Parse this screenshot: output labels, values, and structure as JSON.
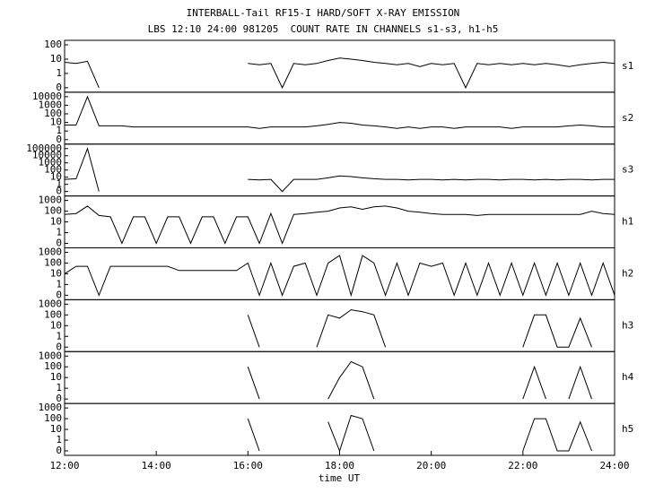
{
  "chart_data": {
    "type": "line",
    "title": "INTERBALL-Tail RF15-I HARD/SOFT X-RAY EMISSION",
    "subtitle": "LBS 12:10 24:00 981205  COUNT RATE IN CHANNELS s1-s3, h1-h5",
    "xlabel": "time UT",
    "yscale": "log",
    "xlim": [
      12,
      24
    ],
    "xticks": [
      {
        "value": 12,
        "label": "12:00"
      },
      {
        "value": 14,
        "label": "14:00"
      },
      {
        "value": 16,
        "label": "16:00"
      },
      {
        "value": 18,
        "label": "18:00"
      },
      {
        "value": 20,
        "label": "20:00"
      },
      {
        "value": 22,
        "label": "22:00"
      },
      {
        "value": 24,
        "label": "24:00"
      }
    ],
    "x": [
      12,
      12.25,
      12.5,
      12.75,
      13,
      13.25,
      13.5,
      13.75,
      14,
      14.25,
      14.5,
      14.75,
      15,
      15.25,
      15.5,
      15.75,
      16,
      16.25,
      16.5,
      16.75,
      17,
      17.25,
      17.5,
      17.75,
      18,
      18.25,
      18.5,
      18.75,
      19,
      19.25,
      19.5,
      19.75,
      20,
      20.25,
      20.5,
      20.75,
      21,
      21.25,
      21.5,
      21.75,
      22,
      22.25,
      22.5,
      22.75,
      23,
      23.25,
      23.5,
      23.75,
      24
    ],
    "color": "#000000",
    "panels": [
      {
        "name": "s1",
        "ylim": [
          0,
          100
        ],
        "yticks": [
          0,
          1,
          10,
          100
        ],
        "values": [
          6,
          5,
          7,
          0,
          null,
          null,
          null,
          null,
          null,
          null,
          null,
          null,
          null,
          null,
          null,
          null,
          5,
          4,
          5,
          0,
          5,
          4,
          5,
          8,
          12,
          10,
          8,
          6,
          5,
          4,
          5,
          3,
          5,
          4,
          5,
          0,
          5,
          4,
          5,
          4,
          5,
          4,
          5,
          4,
          3,
          4,
          5,
          6,
          5
        ]
      },
      {
        "name": "s2",
        "ylim": [
          0,
          10000
        ],
        "yticks": [
          0,
          1,
          10,
          100,
          1000,
          10000
        ],
        "values": [
          5,
          5,
          10000,
          4,
          4,
          4,
          3,
          3,
          3,
          3,
          3,
          3,
          3,
          3,
          3,
          3,
          3,
          2,
          3,
          3,
          3,
          3,
          4,
          6,
          10,
          8,
          5,
          4,
          3,
          2,
          3,
          2,
          3,
          3,
          2,
          3,
          3,
          3,
          3,
          2,
          3,
          3,
          3,
          3,
          4,
          5,
          4,
          3,
          3
        ]
      },
      {
        "name": "s3",
        "ylim": [
          0,
          100000
        ],
        "yticks": [
          0,
          1,
          10,
          100,
          1000,
          10000,
          100000
        ],
        "values": [
          5,
          6,
          100000,
          0,
          null,
          null,
          null,
          null,
          null,
          null,
          null,
          null,
          null,
          null,
          null,
          null,
          5,
          4,
          5,
          0,
          5,
          5,
          5,
          8,
          15,
          12,
          8,
          6,
          5,
          5,
          4,
          5,
          5,
          4,
          5,
          4,
          5,
          5,
          4,
          5,
          5,
          4,
          5,
          4,
          5,
          5,
          4,
          5,
          5
        ]
      },
      {
        "name": "h1",
        "ylim": [
          0,
          1000
        ],
        "yticks": [
          0,
          1,
          10,
          100,
          1000
        ],
        "values": [
          50,
          60,
          300,
          40,
          30,
          0,
          30,
          30,
          0,
          30,
          30,
          0,
          30,
          30,
          0,
          30,
          30,
          0,
          60,
          0,
          50,
          60,
          80,
          100,
          200,
          250,
          150,
          250,
          300,
          200,
          100,
          80,
          60,
          50,
          50,
          50,
          40,
          50,
          50,
          50,
          50,
          50,
          50,
          50,
          50,
          50,
          100,
          60,
          50
        ]
      },
      {
        "name": "h2",
        "ylim": [
          0,
          1000
        ],
        "yticks": [
          0,
          1,
          10,
          100,
          1000
        ],
        "values": [
          10,
          50,
          50,
          0,
          50,
          50,
          50,
          50,
          50,
          50,
          20,
          20,
          20,
          20,
          20,
          20,
          100,
          0,
          100,
          0,
          50,
          100,
          0,
          100,
          500,
          0,
          500,
          100,
          0,
          100,
          0,
          100,
          50,
          100,
          0,
          100,
          0,
          100,
          0,
          100,
          0,
          100,
          0,
          100,
          0,
          100,
          0,
          100,
          0
        ]
      },
      {
        "name": "h3",
        "ylim": [
          0,
          1000
        ],
        "yticks": [
          0,
          1,
          10,
          100,
          1000
        ],
        "values": [
          null,
          null,
          null,
          null,
          null,
          null,
          null,
          null,
          null,
          null,
          null,
          null,
          null,
          null,
          null,
          null,
          100,
          0,
          null,
          null,
          null,
          null,
          0,
          100,
          50,
          300,
          200,
          100,
          0,
          null,
          null,
          null,
          null,
          null,
          null,
          null,
          null,
          null,
          null,
          null,
          0,
          100,
          100,
          0,
          0,
          50,
          0,
          null,
          null
        ]
      },
      {
        "name": "h4",
        "ylim": [
          0,
          1000
        ],
        "yticks": [
          0,
          1,
          10,
          100,
          1000
        ],
        "values": [
          null,
          null,
          null,
          null,
          null,
          null,
          null,
          null,
          null,
          null,
          null,
          null,
          null,
          null,
          null,
          null,
          100,
          0,
          null,
          null,
          null,
          null,
          null,
          0,
          10,
          300,
          100,
          0,
          null,
          null,
          null,
          null,
          null,
          null,
          null,
          null,
          null,
          null,
          null,
          null,
          0,
          100,
          0,
          null,
          0,
          100,
          0,
          null,
          null
        ]
      },
      {
        "name": "h5",
        "ylim": [
          0,
          1000
        ],
        "yticks": [
          0,
          1,
          10,
          100,
          1000
        ],
        "values": [
          null,
          null,
          null,
          null,
          null,
          null,
          null,
          null,
          null,
          null,
          null,
          null,
          null,
          null,
          null,
          null,
          100,
          0,
          null,
          null,
          null,
          null,
          null,
          50,
          0,
          200,
          100,
          0,
          null,
          null,
          null,
          null,
          null,
          null,
          null,
          null,
          null,
          null,
          null,
          null,
          0,
          100,
          100,
          0,
          0,
          50,
          0,
          null,
          null
        ]
      }
    ]
  }
}
